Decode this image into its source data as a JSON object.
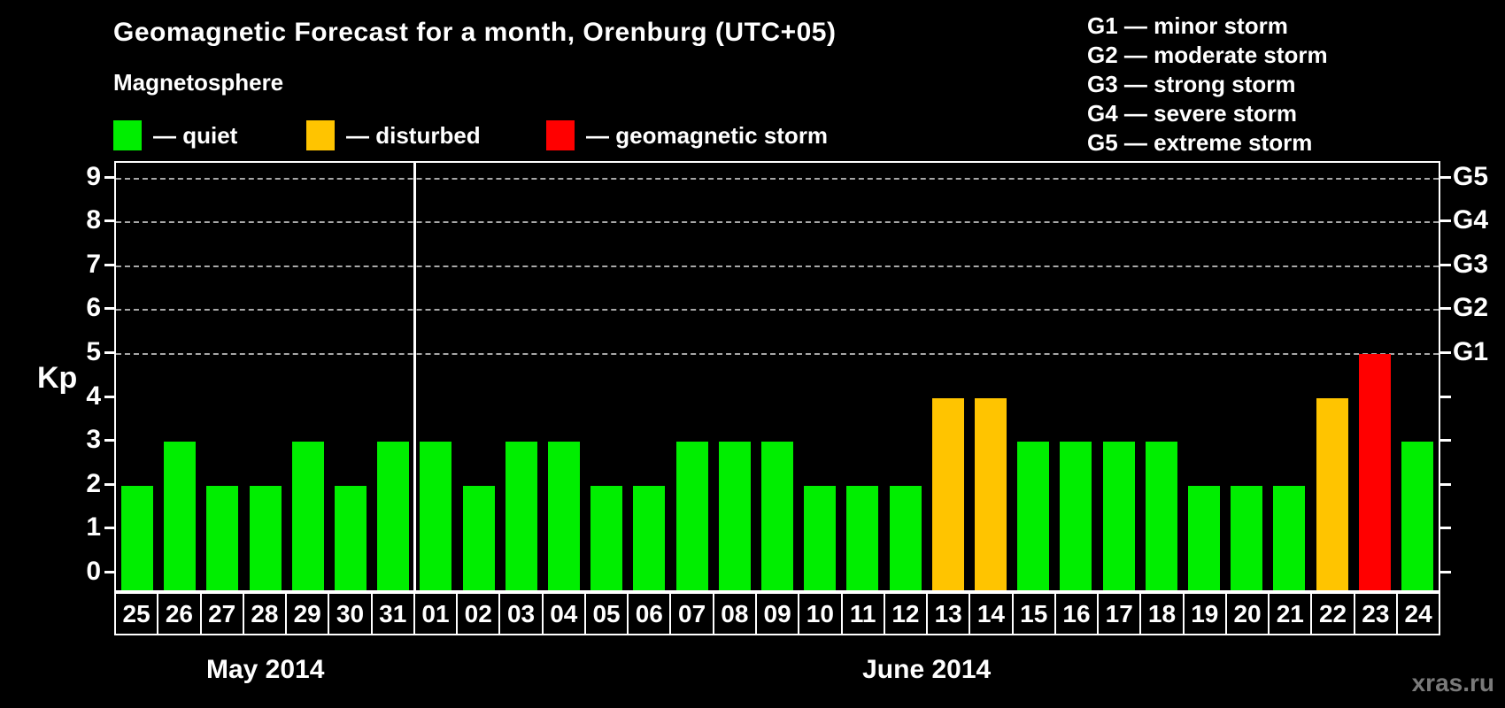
{
  "title": "Geomagnetic Forecast for a month, Orenburg (UTC+05)",
  "subtitle": "Magnetosphere",
  "legend": [
    {
      "status": "quiet",
      "color": "#00EE00",
      "label": "— quiet"
    },
    {
      "status": "disturbed",
      "color": "#FFC400",
      "label": "— disturbed"
    },
    {
      "status": "storm",
      "color": "#FF0000",
      "label": "— geomagnetic storm"
    }
  ],
  "g_scale_legend": [
    "G1 — minor storm",
    "G2 — moderate storm",
    "G3 — strong storm",
    "G4 — severe storm",
    "G5 — extreme storm"
  ],
  "watermark": "xras.ru",
  "chart_data": {
    "type": "bar",
    "ylabel": "Kp",
    "ylim": [
      0,
      9
    ],
    "yticks": [
      0,
      1,
      2,
      3,
      4,
      5,
      6,
      7,
      8,
      9
    ],
    "gridlines_at": [
      5,
      6,
      7,
      8,
      9
    ],
    "grid": "dashed horizontal at storm levels only",
    "right_axis_labels": [
      {
        "value": 5,
        "label": "G1"
      },
      {
        "value": 6,
        "label": "G2"
      },
      {
        "value": 7,
        "label": "G3"
      },
      {
        "value": 8,
        "label": "G4"
      },
      {
        "value": 9,
        "label": "G5"
      }
    ],
    "status_colors": {
      "quiet": "#00EE00",
      "disturbed": "#FFC400",
      "storm": "#FF0000"
    },
    "color_rule": {
      "quiet_max": 3,
      "disturbed_max": 4
    },
    "groups": [
      {
        "month_label": "May 2014",
        "days": [
          {
            "date": "25",
            "kp": 2
          },
          {
            "date": "26",
            "kp": 3
          },
          {
            "date": "27",
            "kp": 2
          },
          {
            "date": "28",
            "kp": 2
          },
          {
            "date": "29",
            "kp": 3
          },
          {
            "date": "30",
            "kp": 2
          },
          {
            "date": "31",
            "kp": 3
          }
        ]
      },
      {
        "month_label": "June 2014",
        "days": [
          {
            "date": "01",
            "kp": 3
          },
          {
            "date": "02",
            "kp": 2
          },
          {
            "date": "03",
            "kp": 3
          },
          {
            "date": "04",
            "kp": 3
          },
          {
            "date": "05",
            "kp": 2
          },
          {
            "date": "06",
            "kp": 2
          },
          {
            "date": "07",
            "kp": 3
          },
          {
            "date": "08",
            "kp": 3
          },
          {
            "date": "09",
            "kp": 3
          },
          {
            "date": "10",
            "kp": 2
          },
          {
            "date": "11",
            "kp": 2
          },
          {
            "date": "12",
            "kp": 2
          },
          {
            "date": "13",
            "kp": 4
          },
          {
            "date": "14",
            "kp": 4
          },
          {
            "date": "15",
            "kp": 3
          },
          {
            "date": "16",
            "kp": 3
          },
          {
            "date": "17",
            "kp": 3
          },
          {
            "date": "18",
            "kp": 3
          },
          {
            "date": "19",
            "kp": 2
          },
          {
            "date": "20",
            "kp": 2
          },
          {
            "date": "21",
            "kp": 2
          },
          {
            "date": "22",
            "kp": 4
          },
          {
            "date": "23",
            "kp": 5
          },
          {
            "date": "24",
            "kp": 3
          }
        ]
      }
    ]
  }
}
